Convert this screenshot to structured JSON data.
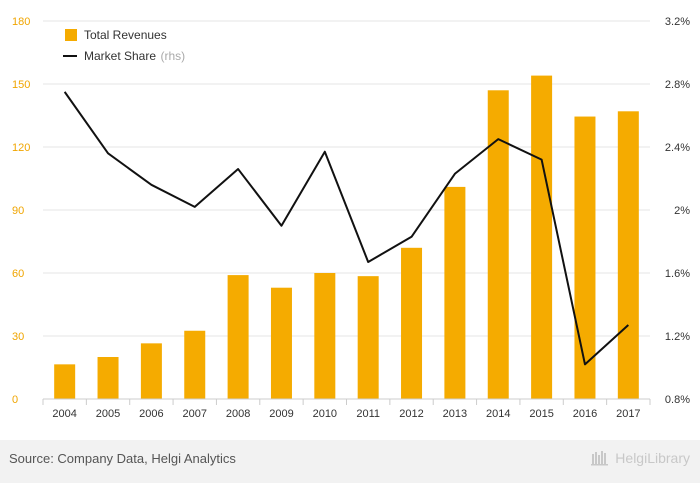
{
  "chart_data": {
    "type": "bar",
    "categories": [
      "2004",
      "2005",
      "2006",
      "2007",
      "2008",
      "2009",
      "2010",
      "2011",
      "2012",
      "2013",
      "2014",
      "2015",
      "2016",
      "2017"
    ],
    "series": [
      {
        "name": "Total Revenues",
        "type": "bar",
        "axis": "left",
        "values": [
          16.5,
          20,
          26.5,
          32.5,
          59,
          53,
          60,
          58.5,
          72,
          101,
          147,
          154,
          134.5,
          137
        ]
      },
      {
        "name": "Market Share",
        "name_note": "(rhs)",
        "type": "line",
        "axis": "right",
        "values": [
          2.75,
          2.36,
          2.16,
          2.02,
          2.26,
          1.9,
          2.37,
          1.67,
          1.83,
          2.23,
          2.45,
          2.32,
          1.02,
          1.27
        ]
      }
    ],
    "y_left": {
      "ylim": [
        0,
        180
      ],
      "ticks": [
        "0",
        "30",
        "60",
        "90",
        "120",
        "150",
        "180"
      ]
    },
    "y_right": {
      "ylim": [
        0.8,
        3.2
      ],
      "ticks": [
        "0.8%",
        "1.2%",
        "1.6%",
        "2%",
        "2.4%",
        "2.8%",
        "3.2%"
      ]
    },
    "grid": true,
    "legend_position": "top-left",
    "colors": {
      "bar": "#f5ab00",
      "line": "#111111",
      "left_ticks": "#f0a500"
    }
  },
  "footer": {
    "source": "Source: Company Data, Helgi Analytics",
    "brand": "HelgiLibrary"
  }
}
